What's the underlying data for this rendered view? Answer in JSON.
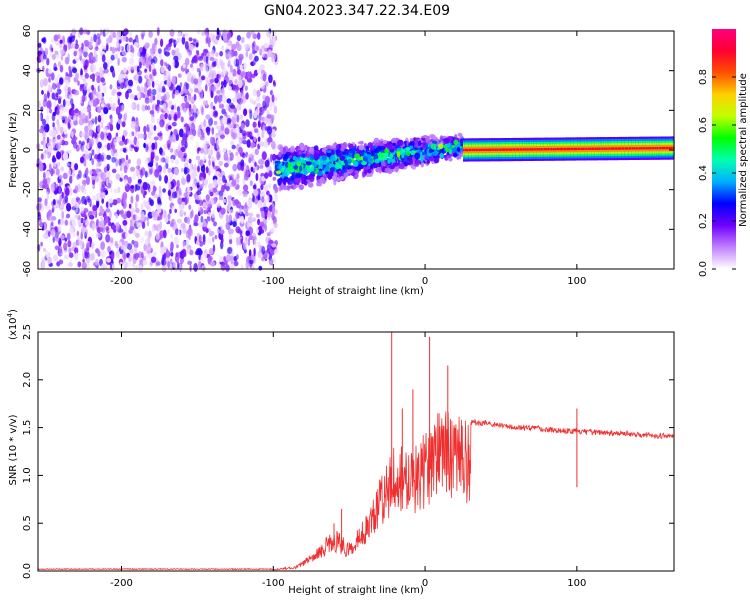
{
  "figure_title": "GN04.2023.347.22.34.E09",
  "chart_data": [
    {
      "type": "heatmap",
      "title": "",
      "xlabel": "Height of straight line (km)",
      "ylabel": "Frequency (Hz)",
      "xlim": [
        -255,
        164
      ],
      "ylim": [
        -60,
        60
      ],
      "xticks": [
        -200,
        -100,
        0,
        100
      ],
      "yticks": [
        -60,
        -40,
        -20,
        0,
        20,
        40,
        60
      ],
      "colorbar": {
        "label": "Normalized spectral amplitude",
        "range": [
          0.0,
          1.0
        ],
        "ticks": [
          "0.0",
          "0.2",
          "0.4",
          "0.6",
          "0.8"
        ],
        "colors": [
          "#ffffff",
          "#c080ff",
          "#7000ff",
          "#0000ff",
          "#00b0ff",
          "#00ffb0",
          "#00ff00",
          "#c0ff00",
          "#ffd000",
          "#ff5000",
          "#ff0030",
          "#ff0080"
        ]
      },
      "regions": [
        {
          "name": "noise",
          "x": [
            -255,
            -98
          ],
          "y": [
            -60,
            60
          ],
          "amplitude": [
            0.02,
            0.25
          ]
        },
        {
          "name": "transition",
          "x": [
            -98,
            25
          ],
          "y_center": [
            -10,
            2
          ],
          "y_halfwidth": [
            10,
            4
          ],
          "amplitude": [
            0.15,
            0.55
          ]
        },
        {
          "name": "tone",
          "x": [
            25,
            164
          ],
          "y": [
            0,
            1
          ],
          "y_halfwidth": 3,
          "amplitude": [
            0.6,
            0.95
          ]
        }
      ]
    },
    {
      "type": "line",
      "title": "",
      "xlabel": "Height of straight line (km)",
      "ylabel": "SNR (10 * v/v)",
      "yscale_label": "(x10",
      "yscale_exp": "4",
      "yscale_close": ")",
      "xlim": [
        -255,
        164
      ],
      "ylim": [
        0,
        2.5
      ],
      "xticks": [
        -200,
        -100,
        0,
        100
      ],
      "yticks": [
        "0.0",
        "0.5",
        "1.0",
        "1.5",
        "2.0",
        "2.5"
      ],
      "color": "#f03030",
      "envelope": {
        "x": [
          -255,
          -100,
          -85,
          -70,
          -60,
          -50,
          -40,
          -30,
          -20,
          -10,
          0,
          10,
          20,
          30,
          40,
          50,
          60,
          70,
          80,
          90,
          100,
          110,
          120,
          130,
          140,
          150,
          164
        ],
        "y": [
          0.02,
          0.02,
          0.05,
          0.25,
          0.45,
          0.3,
          0.55,
          1.0,
          1.35,
          1.25,
          1.45,
          1.7,
          1.65,
          1.55,
          1.55,
          1.52,
          1.5,
          1.5,
          1.48,
          1.47,
          1.46,
          1.45,
          1.45,
          1.44,
          1.43,
          1.42,
          1.41
        ]
      },
      "spikes": [
        {
          "x": -60,
          "y": 0.5
        },
        {
          "x": -55,
          "y": 0.65
        },
        {
          "x": -22,
          "y": 2.5
        },
        {
          "x": -15,
          "y": 1.7
        },
        {
          "x": -8,
          "y": 1.9
        },
        {
          "x": 3,
          "y": 2.45
        },
        {
          "x": 15,
          "y": 2.15
        },
        {
          "x": 100,
          "y": 1.7
        }
      ]
    }
  ]
}
